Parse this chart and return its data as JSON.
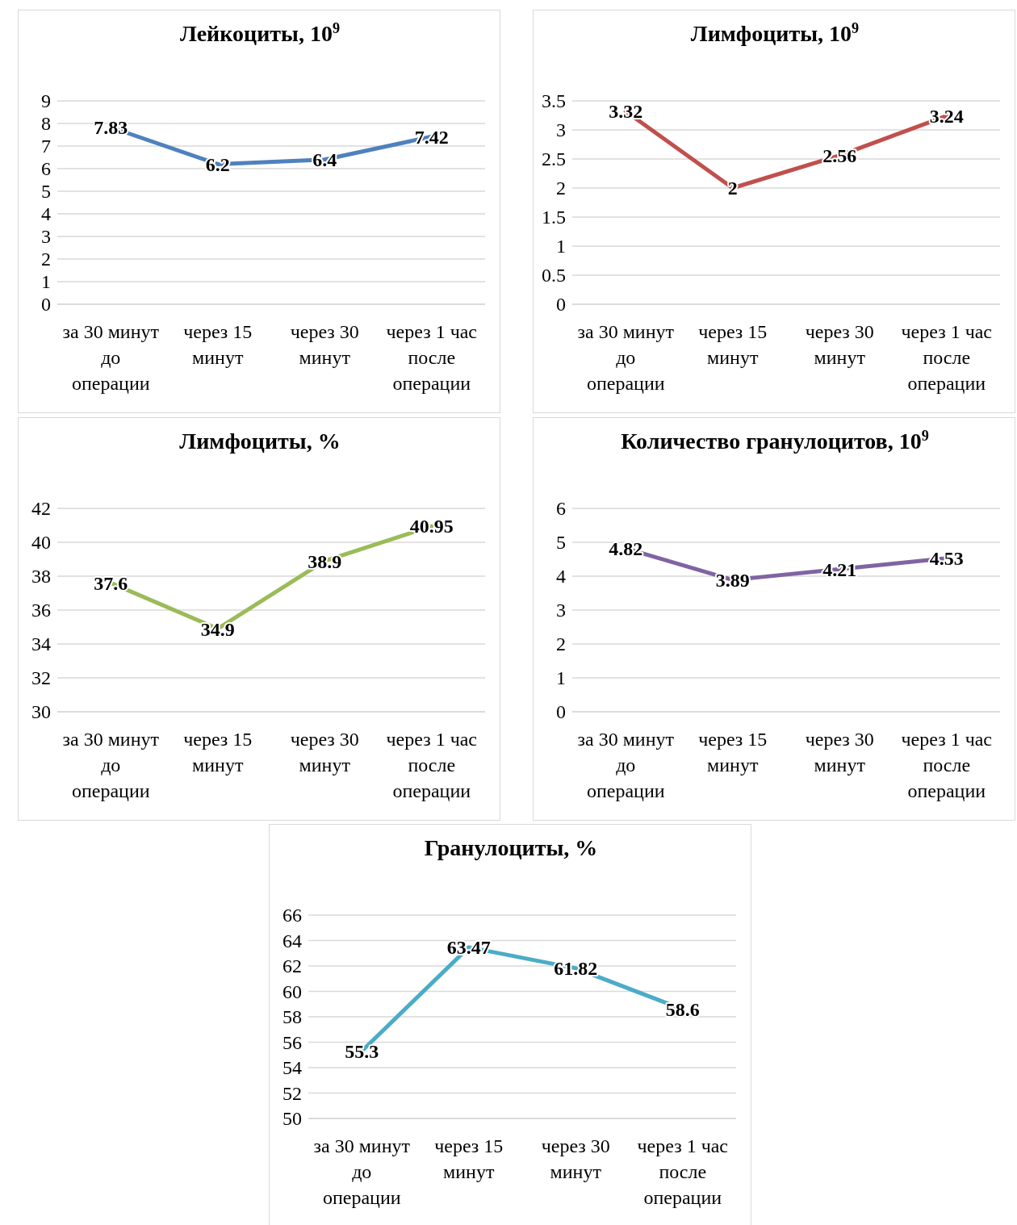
{
  "chart_data": [
    {
      "type": "line",
      "title": "Лейкоциты, 10$^{9}$",
      "categories": [
        "за 30 минут до операции",
        "через 15 минут",
        "через 30 минут",
        "через 1 час после операции"
      ],
      "series": [
        {
          "color": "#4f81bd",
          "values": [
            7.83,
            6.2,
            6.4,
            7.42
          ]
        }
      ],
      "ylim": [
        0,
        9
      ],
      "yticks": [
        0,
        1,
        2,
        3,
        4,
        5,
        6,
        7,
        8,
        9
      ],
      "grid": "y",
      "data_labels": true
    },
    {
      "type": "line",
      "title": "Лимфоциты, 10$^{9}$",
      "categories": [
        "за 30 минут до операции",
        "через 15 минут",
        "через 30 минут",
        "через 1 час после операции"
      ],
      "series": [
        {
          "color": "#c0504d",
          "values": [
            3.32,
            2,
            2.56,
            3.24
          ]
        }
      ],
      "ylim": [
        0,
        3.5
      ],
      "yticks": [
        0,
        0.5,
        1,
        1.5,
        2,
        2.5,
        3,
        3.5
      ],
      "grid": "y",
      "data_labels": true
    },
    {
      "type": "line",
      "title": "Лимфоциты, %",
      "categories": [
        "за 30 минут до операции",
        "через 15 минут",
        "через 30 минут",
        "через 1 час после операции"
      ],
      "series": [
        {
          "color": "#9bbb59",
          "values": [
            37.6,
            34.9,
            38.9,
            40.95
          ]
        }
      ],
      "ylim": [
        30,
        42
      ],
      "yticks": [
        30,
        32,
        34,
        36,
        38,
        40,
        42
      ],
      "grid": "y",
      "data_labels": true
    },
    {
      "type": "line",
      "title": "Количество гранулоцитов, 10$^{9}$",
      "categories": [
        "за 30 минут до операции",
        "через 15 минут",
        "через 30 минут",
        "через 1 час после операции"
      ],
      "series": [
        {
          "color": "#8064a2",
          "values": [
            4.82,
            3.89,
            4.21,
            4.53
          ]
        }
      ],
      "ylim": [
        0,
        6
      ],
      "yticks": [
        0,
        1,
        2,
        3,
        4,
        5,
        6
      ],
      "grid": "y",
      "data_labels": true
    },
    {
      "type": "line",
      "title": "Гранулоциты, %",
      "categories": [
        "за 30 минут до операции",
        "через 15 минут",
        "через 30 минут",
        "через 1 час после операции"
      ],
      "series": [
        {
          "color": "#4bacc6",
          "values": [
            55.3,
            63.47,
            61.82,
            58.6
          ]
        }
      ],
      "ylim": [
        50,
        66
      ],
      "yticks": [
        50,
        52,
        54,
        56,
        58,
        60,
        62,
        64,
        66
      ],
      "grid": "y",
      "data_labels": true
    }
  ]
}
